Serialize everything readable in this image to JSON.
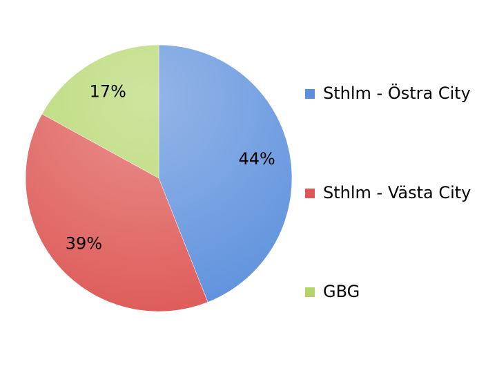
{
  "chart_data": {
    "type": "pie",
    "categories": [
      "Sthlm - Östra City",
      "Sthlm - Västa City",
      "GBG"
    ],
    "values": [
      44,
      39,
      17
    ],
    "value_labels": [
      "44%",
      "39%",
      "17%"
    ],
    "colors": [
      "#5b8fdc",
      "#dd5754",
      "#b3d66a"
    ],
    "legend": "right"
  }
}
